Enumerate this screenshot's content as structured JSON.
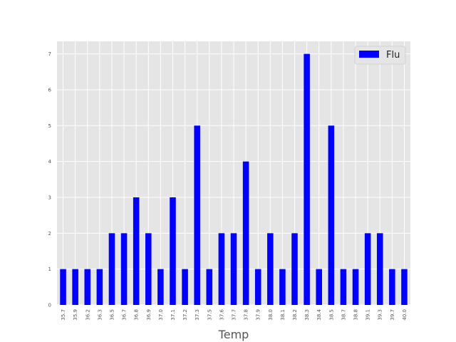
{
  "chart_data": {
    "type": "bar",
    "title": "",
    "xlabel": "Temp",
    "ylabel": "",
    "categories": [
      "35.7",
      "35.9",
      "36.2",
      "36.3",
      "36.5",
      "36.7",
      "36.8",
      "36.9",
      "37.0",
      "37.1",
      "37.2",
      "37.3",
      "37.5",
      "37.6",
      "37.7",
      "37.8",
      "37.9",
      "38.0",
      "38.1",
      "38.2",
      "38.3",
      "38.4",
      "38.5",
      "38.7",
      "38.8",
      "39.1",
      "39.3",
      "39.7",
      "40.0"
    ],
    "series": [
      {
        "name": "Flu",
        "color": "#0000ff",
        "values": [
          1,
          1,
          1,
          1,
          2,
          2,
          3,
          2,
          1,
          3,
          1,
          5,
          1,
          2,
          2,
          4,
          1,
          2,
          1,
          2,
          7,
          1,
          5,
          1,
          1,
          2,
          2,
          1,
          1
        ]
      }
    ],
    "ylim": [
      0,
      7.35
    ],
    "yticks": [
      0,
      1,
      2,
      3,
      4,
      5,
      6,
      7
    ],
    "grid": true,
    "legend_position": "top-right",
    "style": {
      "plot_background": "#e5e5e5",
      "grid_color": "#ffffff",
      "tick_label_color": "#555555",
      "axis_label_color": "#555555"
    }
  }
}
